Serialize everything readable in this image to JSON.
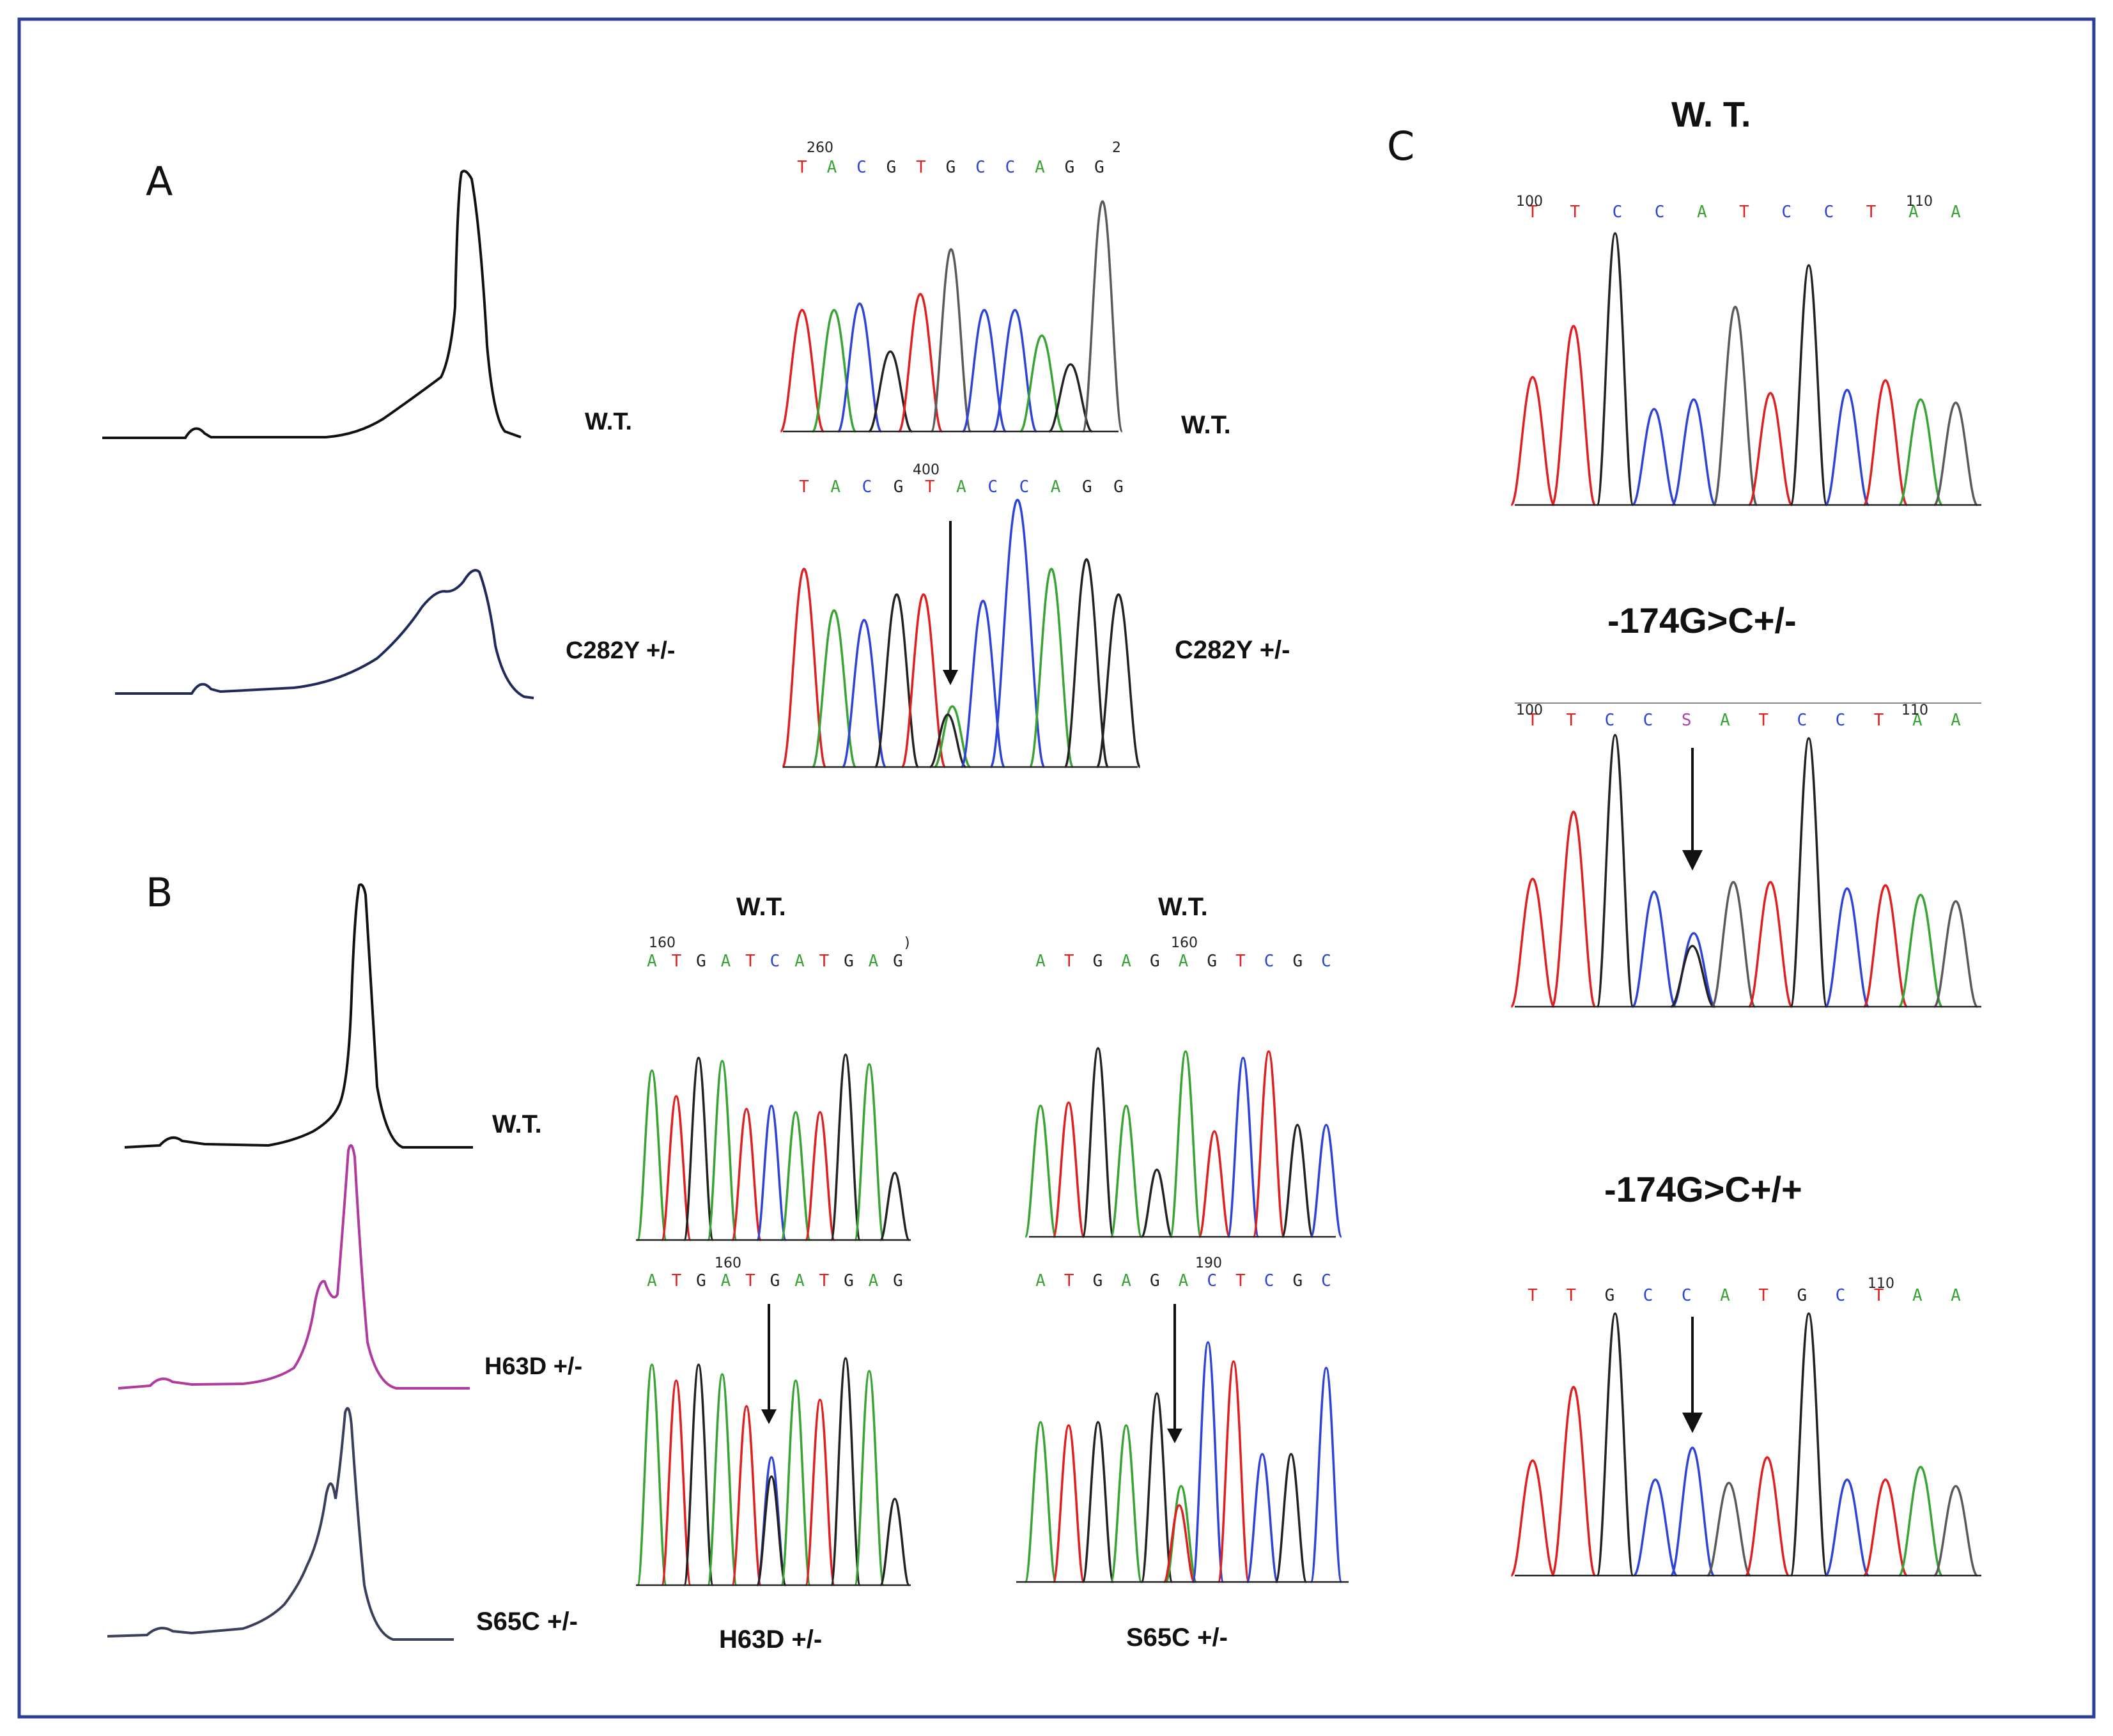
{
  "panels": {
    "A": {
      "letter": "A",
      "hrm_labels": [
        "W.T.",
        "C282Y +/-"
      ],
      "seq_labels": [
        "W.T.",
        "C282Y +/-"
      ],
      "wt_seq": "TACGTGCCAGG",
      "wt_pos": "260",
      "wt_tail": "2",
      "mut_seq": "TACGTACCAGG",
      "mut_pos": "400"
    },
    "B": {
      "letter": "B",
      "hrm_labels": [
        "W.T.",
        "H63D +/-",
        "S65C +/-"
      ],
      "col_titles": [
        "W.T.",
        "W.T."
      ],
      "bottom_labels": [
        "H63D +/-",
        "S65C +/-"
      ],
      "h63_wt_seq": "ATGATCATGAG",
      "h63_wt_pos": "160",
      "h63_wt_tail": ")",
      "h63_mut_seq": "ATGATGATGAG",
      "h63_mut_pos": "160",
      "s65_wt_seq": "ATGAGAGTCGC",
      "s65_wt_pos": "160",
      "s65_mut_seq": "ATGAGACTCGC",
      "s65_mut_pos": "190"
    },
    "C": {
      "letter": "C",
      "titles": [
        "W. T.",
        "-174G>C+/-",
        "-174G>C+/+"
      ],
      "wt_seq": "TTCCATCCTAA",
      "wt_pos1": "100",
      "wt_pos2": "110",
      "het_seq": "TTCCSATCCTAA",
      "het_pos1": "100",
      "het_pos2": "110",
      "hom_seq": "TTGCCATGCTAA",
      "hom_pos2": "110"
    }
  },
  "base_colors": {
    "A": "#3aa335",
    "C": "#2f44d6",
    "G": "#222222",
    "T": "#e02020",
    "S": "#b040b0"
  },
  "hrm_colors": [
    "#111111",
    "#1f2a5a",
    "#b03a9e",
    "#3a3f5a"
  ]
}
